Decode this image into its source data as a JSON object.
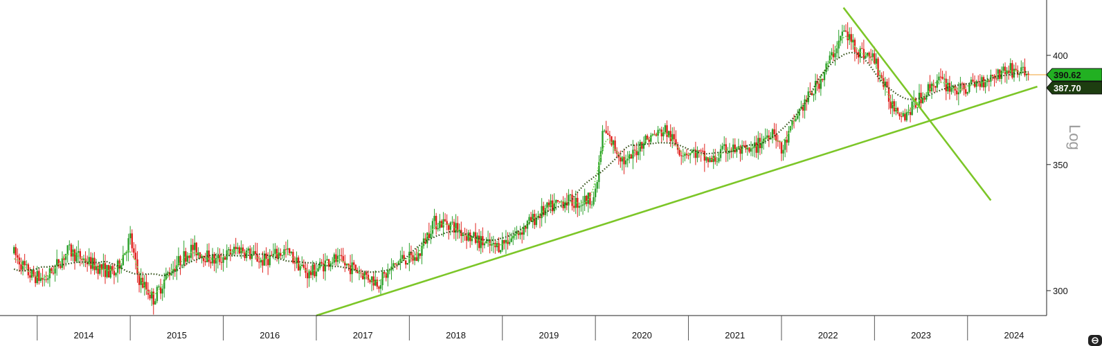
{
  "chart_data": {
    "type": "candlestick",
    "scale": "log",
    "scale_label": "Log",
    "x_ticks": [
      "2014",
      "2015",
      "2016",
      "2017",
      "2018",
      "2019",
      "2020",
      "2021",
      "2022",
      "2023",
      "2024"
    ],
    "y_ticks": [
      300,
      350,
      400
    ],
    "ylim": [
      291,
      428
    ],
    "last_price": "390.62",
    "last_ma_value": "387.70",
    "price_path": [
      [
        "2013-10",
        314
      ],
      [
        "2013-12",
        306
      ],
      [
        "2014-02",
        304
      ],
      [
        "2014-05",
        315
      ],
      [
        "2014-08",
        310
      ],
      [
        "2014-11",
        306
      ],
      [
        "2015-01",
        320
      ],
      [
        "2015-02",
        305
      ],
      [
        "2015-04",
        297
      ],
      [
        "2015-06",
        307
      ],
      [
        "2015-09",
        316
      ],
      [
        "2015-12",
        311
      ],
      [
        "2016-03",
        316
      ],
      [
        "2016-06",
        311
      ],
      [
        "2016-09",
        315
      ],
      [
        "2016-12",
        306
      ],
      [
        "2017-03",
        312
      ],
      [
        "2017-06",
        308
      ],
      [
        "2017-09",
        303
      ],
      [
        "2017-12",
        312
      ],
      [
        "2018-02",
        312
      ],
      [
        "2018-04",
        326
      ],
      [
        "2018-06",
        326
      ],
      [
        "2018-09",
        320
      ],
      [
        "2018-12",
        316
      ],
      [
        "2019-03",
        322
      ],
      [
        "2019-06",
        330
      ],
      [
        "2019-09",
        335
      ],
      [
        "2019-11",
        334
      ],
      [
        "2020-01",
        337
      ],
      [
        "2020-02",
        365
      ],
      [
        "2020-05",
        350
      ],
      [
        "2020-07",
        360
      ],
      [
        "2020-10",
        365
      ],
      [
        "2020-12",
        356
      ],
      [
        "2021-02",
        355
      ],
      [
        "2021-04",
        351
      ],
      [
        "2021-06",
        357
      ],
      [
        "2021-09",
        355
      ],
      [
        "2021-12",
        366
      ],
      [
        "2022-01",
        355
      ],
      [
        "2022-03",
        372
      ],
      [
        "2022-06",
        388
      ],
      [
        "2022-09",
        412
      ],
      [
        "2022-11",
        402
      ],
      [
        "2023-01",
        398
      ],
      [
        "2023-03",
        378
      ],
      [
        "2023-05",
        372
      ],
      [
        "2023-07",
        380
      ],
      [
        "2023-09",
        388
      ],
      [
        "2023-12",
        383
      ],
      [
        "2024-03",
        388
      ],
      [
        "2024-06",
        393
      ],
      [
        "2024-08",
        392
      ],
      [
        "2024-09",
        390.62
      ]
    ],
    "moving_averages": [
      {
        "style": "dotted-light-green",
        "color": "#7ed957",
        "smoothing_window": 4
      },
      {
        "style": "dotted-dark-green",
        "color": "#2e4d12",
        "smoothing_window": 16
      }
    ],
    "trendlines": [
      {
        "color": "#7cc628",
        "from": [
          "2017-01",
          291
        ],
        "to": [
          "2024-10",
          385
        ]
      },
      {
        "color": "#7cc628",
        "from": [
          "2022-09",
          424
        ],
        "to": [
          "2024-04",
          335
        ]
      }
    ],
    "colors": {
      "up": "#2aa02a",
      "down": "#e0201c",
      "last_price_tag": "#22b022",
      "ma_tag": "#1d3d10",
      "price_line": "#f0a030"
    },
    "icons": [
      "zoom-icon"
    ]
  }
}
